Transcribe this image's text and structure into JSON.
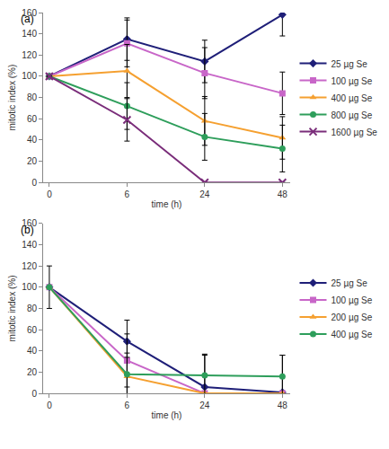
{
  "chart_data": [
    {
      "type": "line",
      "annotations": [
        "(a)"
      ],
      "x_label": "time (h)",
      "y_label": "mitotic index (%)",
      "categories": [
        "0",
        "6",
        "24",
        "48"
      ],
      "ylim": [
        0,
        160
      ],
      "yticks": [
        0,
        20,
        40,
        60,
        80,
        100,
        120,
        140,
        160
      ],
      "grid": false,
      "legend": "right",
      "series": [
        {
          "name": "25 µg Se",
          "color": "#1f1f78",
          "marker": "diamond",
          "values": [
            100,
            135,
            114,
            158
          ],
          "errors": [
            0,
            20,
            20,
            20
          ]
        },
        {
          "name": "100 µg Se",
          "color": "#c866c8",
          "marker": "square",
          "values": [
            100,
            131,
            103,
            84
          ],
          "errors": [
            0,
            22,
            24,
            20
          ]
        },
        {
          "name": "400 µg Se",
          "color": "#f5a030",
          "marker": "triangle",
          "values": [
            100,
            105,
            58,
            42
          ],
          "errors": [
            0,
            25,
            23,
            20
          ]
        },
        {
          "name": "800 µg Se",
          "color": "#2e9e5b",
          "marker": "circle",
          "values": [
            100,
            72,
            43,
            32
          ],
          "errors": [
            0,
            22,
            22,
            22
          ]
        },
        {
          "name": "1600 µg Se",
          "color": "#7a2d7a",
          "marker": "x",
          "values": [
            100,
            59,
            0,
            0
          ],
          "errors": [
            0,
            20,
            0,
            0
          ]
        }
      ]
    },
    {
      "type": "line",
      "annotations": [
        "(b)"
      ],
      "x_label": "time (h)",
      "y_label": "mitotic index (%)",
      "categories": [
        "0",
        "6",
        "24",
        "48"
      ],
      "ylim": [
        0,
        160
      ],
      "yticks": [
        0,
        20,
        40,
        60,
        80,
        100,
        120,
        140,
        160
      ],
      "grid": false,
      "legend": "right",
      "series": [
        {
          "name": "25 µg Se",
          "color": "#1f1f78",
          "marker": "diamond",
          "values": [
            100,
            49,
            6,
            1
          ],
          "errors": [
            20,
            20,
            30,
            35
          ]
        },
        {
          "name": "100 µg Se",
          "color": "#c866c8",
          "marker": "square",
          "values": [
            100,
            31,
            0,
            0
          ],
          "errors": [
            0,
            25,
            0,
            0
          ]
        },
        {
          "name": "200 µg Se",
          "color": "#f5a030",
          "marker": "triangle",
          "values": [
            100,
            16,
            0,
            0
          ],
          "errors": [
            0,
            18,
            0,
            0
          ]
        },
        {
          "name": "400 µg Se",
          "color": "#2e9e5b",
          "marker": "circle",
          "values": [
            100,
            18,
            17,
            16
          ],
          "errors": [
            0,
            20,
            20,
            20
          ]
        }
      ]
    }
  ]
}
